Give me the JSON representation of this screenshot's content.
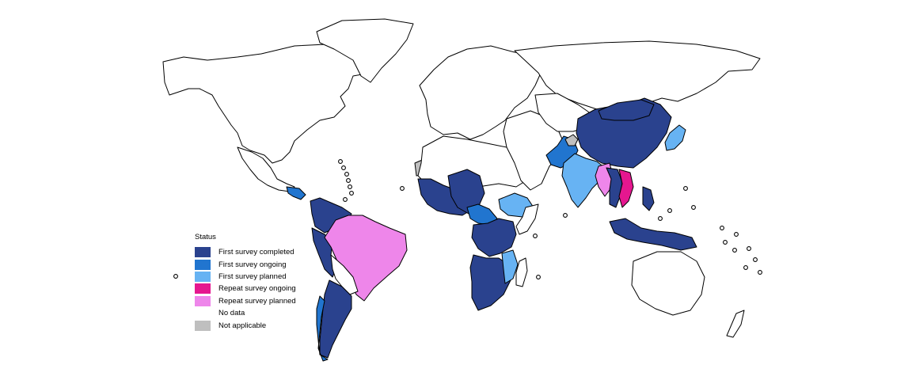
{
  "legend": {
    "title": "Status",
    "items": [
      {
        "label": "First survey completed",
        "color": "#2a428e"
      },
      {
        "label": "First survey ongoing",
        "color": "#2175cf"
      },
      {
        "label": "First survey planned",
        "color": "#67b3f3"
      },
      {
        "label": "Repeat survey ongoing",
        "color": "#e5178f"
      },
      {
        "label": "Repeat survey planned",
        "color": "#ee86ea"
      },
      {
        "label": "No data",
        "color": "#ffffff"
      },
      {
        "label": "Not applicable",
        "color": "#bfbfbf"
      }
    ]
  },
  "map": {
    "regions": [
      {
        "name": "North America",
        "status": "No data"
      },
      {
        "name": "Greenland",
        "status": "No data"
      },
      {
        "name": "Mexico",
        "status": "No data"
      },
      {
        "name": "Central America",
        "status": "First survey ongoing"
      },
      {
        "name": "Colombia / Venezuela",
        "status": "First survey completed"
      },
      {
        "name": "Ecuador / Peru",
        "status": "First survey completed"
      },
      {
        "name": "Brazil",
        "status": "Repeat survey planned"
      },
      {
        "name": "Bolivia / Paraguay",
        "status": "No data"
      },
      {
        "name": "Argentina",
        "status": "First survey completed"
      },
      {
        "name": "Chile",
        "status": "First survey ongoing"
      },
      {
        "name": "Europe",
        "status": "No data"
      },
      {
        "name": "Russia",
        "status": "No data"
      },
      {
        "name": "Western Sahara",
        "status": "Not applicable"
      },
      {
        "name": "North Africa",
        "status": "No data"
      },
      {
        "name": "West Africa",
        "status": "First survey completed"
      },
      {
        "name": "Nigeria / Cameroon",
        "status": "First survey completed"
      },
      {
        "name": "Central Africa",
        "status": "First survey ongoing"
      },
      {
        "name": "Ethiopia",
        "status": "First survey planned"
      },
      {
        "name": "Somalia",
        "status": "No data"
      },
      {
        "name": "East Africa",
        "status": "First survey completed"
      },
      {
        "name": "Southern Africa",
        "status": "First survey completed"
      },
      {
        "name": "Mozambique",
        "status": "First survey planned"
      },
      {
        "name": "Madagascar",
        "status": "No data"
      },
      {
        "name": "Middle East",
        "status": "No data"
      },
      {
        "name": "Central Asia",
        "status": "No data"
      },
      {
        "name": "Pakistan",
        "status": "First survey ongoing"
      },
      {
        "name": "Kashmir",
        "status": "Not applicable"
      },
      {
        "name": "India",
        "status": "First survey planned"
      },
      {
        "name": "China",
        "status": "First survey completed"
      },
      {
        "name": "Mongolia",
        "status": "First survey completed"
      },
      {
        "name": "Myanmar",
        "status": "Repeat survey planned"
      },
      {
        "name": "Thailand / Laos",
        "status": "First survey completed"
      },
      {
        "name": "Vietnam / Cambodia",
        "status": "Repeat survey ongoing"
      },
      {
        "name": "Japan",
        "status": "First survey planned"
      },
      {
        "name": "Philippines",
        "status": "First survey completed"
      },
      {
        "name": "Malaysia / Indonesia",
        "status": "First survey completed"
      },
      {
        "name": "Australia",
        "status": "No data"
      },
      {
        "name": "New Zealand",
        "status": "No data"
      }
    ]
  }
}
